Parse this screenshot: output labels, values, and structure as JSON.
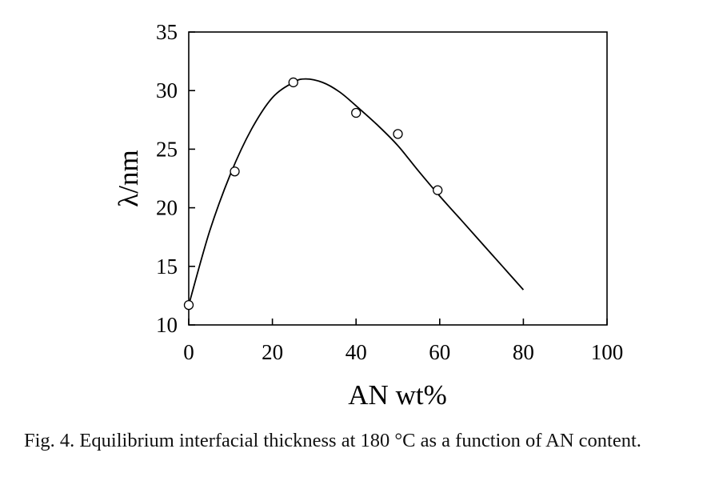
{
  "chart_data": {
    "type": "scatter",
    "xlabel": "AN wt%",
    "ylabel": "λ/nm",
    "xlim": [
      0,
      100
    ],
    "ylim": [
      10,
      35
    ],
    "xticks": [
      0,
      20,
      40,
      60,
      80,
      100
    ],
    "yticks": [
      10,
      15,
      20,
      25,
      30,
      35
    ],
    "grid": false,
    "legend": "none",
    "series": [
      {
        "kind": "markers",
        "marker": "open-circle",
        "x": [
          0,
          11,
          25,
          40,
          50,
          59.5
        ],
        "y": [
          11.7,
          23.1,
          30.7,
          28.1,
          26.3,
          21.5
        ]
      },
      {
        "kind": "line",
        "x": [
          0,
          5,
          10,
          15,
          20,
          25,
          28,
          32,
          36,
          40,
          45,
          50,
          55,
          60,
          65,
          70,
          75,
          80
        ],
        "y": [
          11.7,
          18,
          22.9,
          26.7,
          29.4,
          30.7,
          31.0,
          30.7,
          29.9,
          28.7,
          27.1,
          25.3,
          23.1,
          21.0,
          19.0,
          17.0,
          15.0,
          13.0
        ]
      }
    ],
    "color": "#000000"
  },
  "caption": "Fig. 4. Equilibrium interfacial thickness at 180 °C as a function of AN content."
}
